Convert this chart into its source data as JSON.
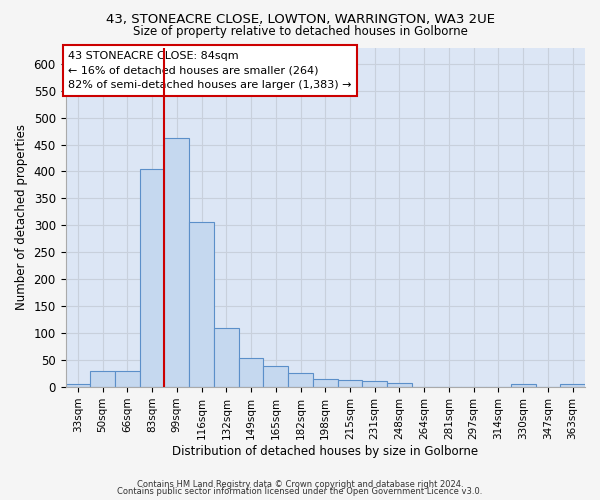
{
  "title1": "43, STONEACRE CLOSE, LOWTON, WARRINGTON, WA3 2UE",
  "title2": "Size of property relative to detached houses in Golborne",
  "xlabel": "Distribution of detached houses by size in Golborne",
  "ylabel": "Number of detached properties",
  "categories": [
    "33sqm",
    "50sqm",
    "66sqm",
    "83sqm",
    "99sqm",
    "116sqm",
    "132sqm",
    "149sqm",
    "165sqm",
    "182sqm",
    "198sqm",
    "215sqm",
    "231sqm",
    "248sqm",
    "264sqm",
    "281sqm",
    "297sqm",
    "314sqm",
    "330sqm",
    "347sqm",
    "363sqm"
  ],
  "values": [
    6,
    30,
    30,
    405,
    463,
    306,
    110,
    54,
    40,
    27,
    15,
    13,
    11,
    7,
    0,
    0,
    0,
    0,
    5,
    0,
    5
  ],
  "bar_color": "#c5d8ef",
  "bar_edge_color": "#5b8fc9",
  "vline_x_index": 3,
  "vline_color": "#cc0000",
  "annotation_text": "43 STONEACRE CLOSE: 84sqm\n← 16% of detached houses are smaller (264)\n82% of semi-detached houses are larger (1,383) →",
  "annotation_box_facecolor": "#ffffff",
  "annotation_box_edgecolor": "#cc0000",
  "plot_bg_color": "#dce6f5",
  "fig_bg_color": "#f5f5f5",
  "grid_color": "#c8d0dc",
  "ylim": [
    0,
    630
  ],
  "yticks": [
    0,
    50,
    100,
    150,
    200,
    250,
    300,
    350,
    400,
    450,
    500,
    550,
    600
  ],
  "footnote1": "Contains HM Land Registry data © Crown copyright and database right 2024.",
  "footnote2": "Contains public sector information licensed under the Open Government Licence v3.0."
}
